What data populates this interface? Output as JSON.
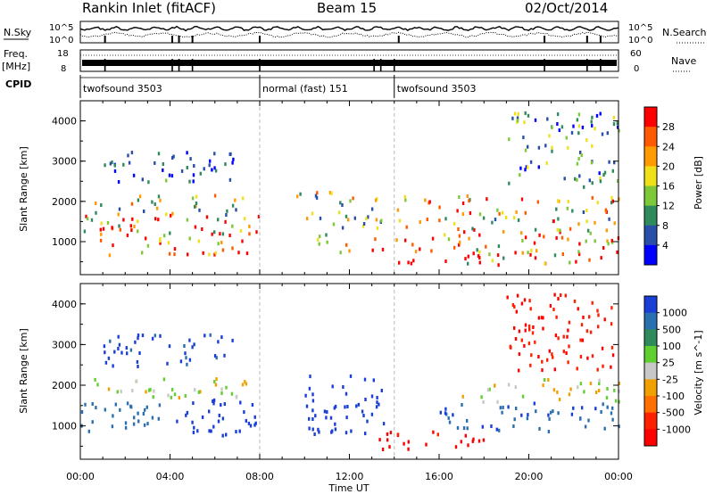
{
  "header": {
    "station": "Rankin Inlet (fitACF)",
    "beam": "Beam 15",
    "date": "02/Oct/2014"
  },
  "strip_labels": {
    "nsky": "N.Sky",
    "nsky_top": "10^5",
    "nsky_bottom": "10^0",
    "nsearch": "N.Search",
    "nsearch_top": "10^5",
    "nsearch_bottom": "10^0",
    "freq_line1": "Freq.",
    "freq_line2": "[MHz]",
    "freq_top": "18",
    "freq_bottom": "8",
    "nave": "Nave",
    "nave_top": "60",
    "nave_bottom": "0",
    "cpid": "CPID"
  },
  "cpid_segments": [
    {
      "label": "twofsound 3503",
      "start_hour": 0,
      "end_hour": 8
    },
    {
      "label": "normal (fast) 151",
      "start_hour": 8,
      "end_hour": 14
    },
    {
      "label": "twofsound 3503",
      "start_hour": 14,
      "end_hour": 24
    }
  ],
  "colors": {
    "power_scale": [
      "#0000ff",
      "#2a4fa8",
      "#2f8a5c",
      "#7ec93a",
      "#f0e018",
      "#ff9a00",
      "#ff5a00",
      "#ff0000"
    ],
    "velocity_scale": [
      "#1a3fd6",
      "#2a6fb0",
      "#2f8a5c",
      "#5fd030",
      "#c8c8c8",
      "#f0a000",
      "#ff7000",
      "#ff2000",
      "#ff0000"
    ],
    "dashed_line": "#bbbbbb"
  },
  "chart_data": [
    {
      "type": "heatmap",
      "name_panel": "power",
      "ylabel": "Slant Range [km]",
      "xlabel": "",
      "ylim": [
        180,
        4500
      ],
      "xlim": [
        0,
        24
      ],
      "yticks": [
        "1000",
        "2000",
        "3000",
        "4000"
      ],
      "colorbar_label": "Power [dB]",
      "colorbar_ticks": [
        "4",
        "8",
        "12",
        "16",
        "20",
        "24",
        "28"
      ],
      "colorbar_range": [
        0,
        30
      ],
      "regions": [
        {
          "x": [
            0,
            8
          ],
          "y": [
            700,
            1700
          ],
          "value": 24
        },
        {
          "x": [
            0.5,
            7.5
          ],
          "y": [
            1700,
            2200
          ],
          "value": 14
        },
        {
          "x": [
            1,
            7
          ],
          "y": [
            2500,
            3300
          ],
          "value": 6
        },
        {
          "x": [
            9.5,
            13.5
          ],
          "y": [
            1300,
            2300
          ],
          "value": 14
        },
        {
          "x": [
            10.5,
            13.5
          ],
          "y": [
            700,
            1300
          ],
          "value": 22
        },
        {
          "x": [
            14,
            24
          ],
          "y": [
            400,
            1300
          ],
          "value": 26
        },
        {
          "x": [
            14,
            24
          ],
          "y": [
            1300,
            2200
          ],
          "value": 18
        },
        {
          "x": [
            19,
            24
          ],
          "y": [
            2400,
            4300
          ],
          "value": 10
        }
      ]
    },
    {
      "type": "heatmap",
      "name_panel": "velocity",
      "ylabel": "Slant Range [km]",
      "xlabel": "Time UT",
      "ylim": [
        180,
        4500
      ],
      "xlim": [
        0,
        24
      ],
      "xticks": [
        "00:00",
        "04:00",
        "08:00",
        "12:00",
        "16:00",
        "20:00",
        "00:00"
      ],
      "yticks": [
        "1000",
        "2000",
        "3000",
        "4000"
      ],
      "colorbar_label": "Velocity [m s^-1]",
      "colorbar_ticks": [
        "1000",
        "500",
        "100",
        "25",
        "-25",
        "-100",
        "-500",
        "-1000"
      ],
      "regions": [
        {
          "x": [
            0,
            4
          ],
          "y": [
            800,
            1600
          ],
          "value": 100
        },
        {
          "x": [
            4,
            7.8
          ],
          "y": [
            800,
            1700
          ],
          "value": 800
        },
        {
          "x": [
            0.5,
            7.5
          ],
          "y": [
            1700,
            2200
          ],
          "value": 0
        },
        {
          "x": [
            1,
            7
          ],
          "y": [
            2500,
            3300
          ],
          "value": 300
        },
        {
          "x": [
            10,
            13.5
          ],
          "y": [
            800,
            2300
          ],
          "value": 700
        },
        {
          "x": [
            13,
            18
          ],
          "y": [
            400,
            900
          ],
          "value": -300
        },
        {
          "x": [
            16,
            24
          ],
          "y": [
            900,
            1600
          ],
          "value": 200
        },
        {
          "x": [
            17,
            24
          ],
          "y": [
            1600,
            2200
          ],
          "value": 0
        },
        {
          "x": [
            19,
            24
          ],
          "y": [
            2400,
            4300
          ],
          "value": -200
        }
      ]
    }
  ]
}
